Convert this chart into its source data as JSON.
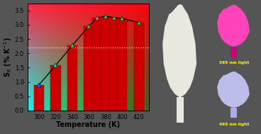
{
  "temperatures": [
    300,
    320,
    340,
    360,
    370,
    380,
    390,
    400,
    420
  ],
  "bar_values": [
    0.9,
    1.58,
    2.28,
    2.95,
    3.25,
    3.3,
    3.25,
    3.22,
    3.08
  ],
  "marker_colors": [
    "#3355ff",
    "#00ddcc",
    "#33cc33",
    "#33cc33",
    "#999988",
    "#33cc33",
    "#33cc33",
    "#33cc33",
    "#33cc33"
  ],
  "bar_color": "#cc0000",
  "ylabel": "S$_R$ (% K$^{-1}$)",
  "xlabel": "Temperature (K)",
  "ylim": [
    0,
    3.75
  ],
  "yticks": [
    0.0,
    0.5,
    1.0,
    1.5,
    2.0,
    2.5,
    3.0,
    3.5
  ],
  "xticks": [
    300,
    320,
    340,
    360,
    380,
    400,
    420
  ],
  "xlim": [
    286,
    432
  ],
  "label_fontsize": 7.0,
  "tick_fontsize": 6.0,
  "dot_line_y": 2.2,
  "panel_bg": "#666666",
  "uv365_bg": "#110033",
  "uv465_bg": "#000033",
  "tulip_white": "#e8e8de",
  "tulip_pink": "#ff44bb",
  "tulip_blue": "#ccccff",
  "text_color_365": "#ffff00",
  "text_color_465": "#ffff00",
  "label_365": "365 nm light",
  "label_465": "465 nm light",
  "small_font": 4.2
}
